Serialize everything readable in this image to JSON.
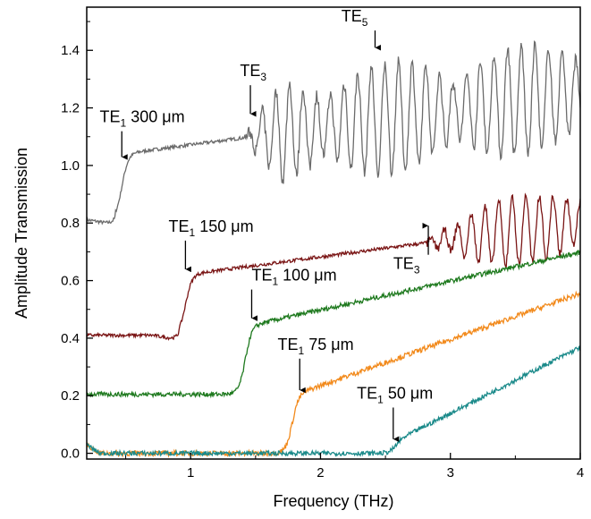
{
  "chart_data": {
    "type": "line",
    "title": "",
    "xlabel": "Frequency (THz)",
    "ylabel": "Amplitude Transmission",
    "xlim": [
      0.2,
      4.0
    ],
    "ylim": [
      -0.02,
      1.55
    ],
    "xticks": [
      1,
      2,
      3,
      4
    ],
    "yticks": [
      0.0,
      0.2,
      0.4,
      0.6,
      0.8,
      1.0,
      1.2,
      1.4
    ],
    "xtick_labels": [
      "1",
      "2",
      "3",
      "4"
    ],
    "ytick_labels": [
      "0.0",
      "0.2",
      "0.4",
      "0.6",
      "0.8",
      "1.0",
      "1.2",
      "1.4"
    ],
    "grid": false,
    "colors": {
      "300um": "#6b6b6b",
      "150um": "#7a1515",
      "100um": "#1f7a1f",
      "75um": "#f28a1c",
      "50um": "#1b8a8a"
    },
    "series": [
      {
        "key": "300um",
        "cutoff": 0.47,
        "low": 0.81,
        "high": 1.04,
        "slope": 0.06,
        "osc_start": 1.42,
        "osc_amp": 0.16,
        "noise": 0.006
      },
      {
        "key": "150um",
        "cutoff": 0.96,
        "low": 0.41,
        "high": 0.62,
        "slope": 0.06,
        "osc_start": 2.82,
        "osc_amp": 0.1,
        "noise": 0.006
      },
      {
        "key": "100um",
        "cutoff": 1.42,
        "low": 0.205,
        "high": 0.44,
        "slope": 0.1,
        "osc_start": null,
        "osc_amp": 0,
        "noise": 0.008
      },
      {
        "key": "75um",
        "cutoff": 1.78,
        "low": 0.0,
        "high": 0.2,
        "slope": 0.16,
        "osc_start": null,
        "osc_amp": 0,
        "noise": 0.009
      },
      {
        "key": "50um",
        "cutoff": 2.57,
        "low": 0.0,
        "high": 0.04,
        "slope": 0.23,
        "osc_start": null,
        "osc_amp": 0,
        "noise": 0.008
      }
    ],
    "annotations": [
      {
        "id": "te1-300",
        "text": "TE",
        "sub": "1",
        "suffix": " 300 μm",
        "x": 0.47,
        "y": 1.02,
        "label_x": 0.3,
        "label_y": 1.15
      },
      {
        "id": "te3-300",
        "text": "TE",
        "sub": "3",
        "suffix": "",
        "x": 1.46,
        "y": 1.17,
        "label_x": 1.38,
        "label_y": 1.31
      },
      {
        "id": "te5-300",
        "text": "TE",
        "sub": "5",
        "suffix": "",
        "x": 2.42,
        "y": 1.4,
        "label_x": 2.16,
        "label_y": 1.5
      },
      {
        "id": "te1-150",
        "text": "TE",
        "sub": "1",
        "suffix": " 150 μm",
        "x": 0.96,
        "y": 0.63,
        "label_x": 0.83,
        "label_y": 0.77
      },
      {
        "id": "te3-150",
        "text": "TE",
        "sub": "3",
        "suffix": "",
        "x": 2.83,
        "y": 0.8,
        "label_x": 2.56,
        "label_y": 0.64,
        "arrow_up": true
      },
      {
        "id": "te1-100",
        "text": "TE",
        "sub": "1",
        "suffix": " 100 μm",
        "x": 1.47,
        "y": 0.46,
        "label_x": 1.47,
        "label_y": 0.6
      },
      {
        "id": "te1-75",
        "text": "TE",
        "sub": "1",
        "suffix": " 75 μm",
        "x": 1.84,
        "y": 0.21,
        "label_x": 1.67,
        "label_y": 0.36
      },
      {
        "id": "te1-50",
        "text": "TE",
        "sub": "1",
        "suffix": " 50 μm",
        "x": 2.56,
        "y": 0.04,
        "label_x": 2.28,
        "label_y": 0.19
      }
    ]
  }
}
